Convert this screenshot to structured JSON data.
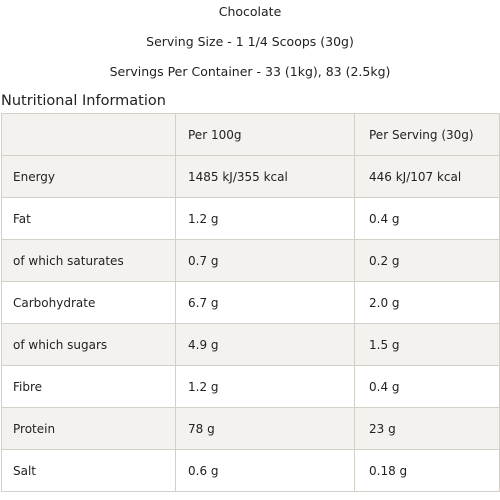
{
  "header": {
    "flavour": "Chocolate",
    "serving_size": "Serving Size - 1 1/4 Scoops (30g)",
    "servings_per_container": "Servings Per Container - 33 (1kg), 83 (2.5kg)"
  },
  "section_title": "Nutritional Information",
  "table": {
    "columns": [
      "",
      "Per 100g",
      "Per Serving (30g)"
    ],
    "rows": [
      {
        "name": "Energy",
        "per100": "1485 kJ/355 kcal",
        "perServing": "446 kJ/107 kcal"
      },
      {
        "name": "Fat",
        "per100": "1.2 g",
        "perServing": "0.4 g"
      },
      {
        "name": "of which saturates",
        "per100": "0.7 g",
        "perServing": "0.2 g"
      },
      {
        "name": "Carbohydrate",
        "per100": "6.7 g",
        "perServing": "2.0 g"
      },
      {
        "name": "of which sugars",
        "per100": "4.9 g",
        "perServing": "1.5 g"
      },
      {
        "name": "Fibre",
        "per100": "1.2 g",
        "perServing": "0.4 g"
      },
      {
        "name": "Protein",
        "per100": "78 g",
        "perServing": "23 g"
      },
      {
        "name": "Salt",
        "per100": "0.6 g",
        "perServing": "0.18 g"
      }
    ]
  }
}
